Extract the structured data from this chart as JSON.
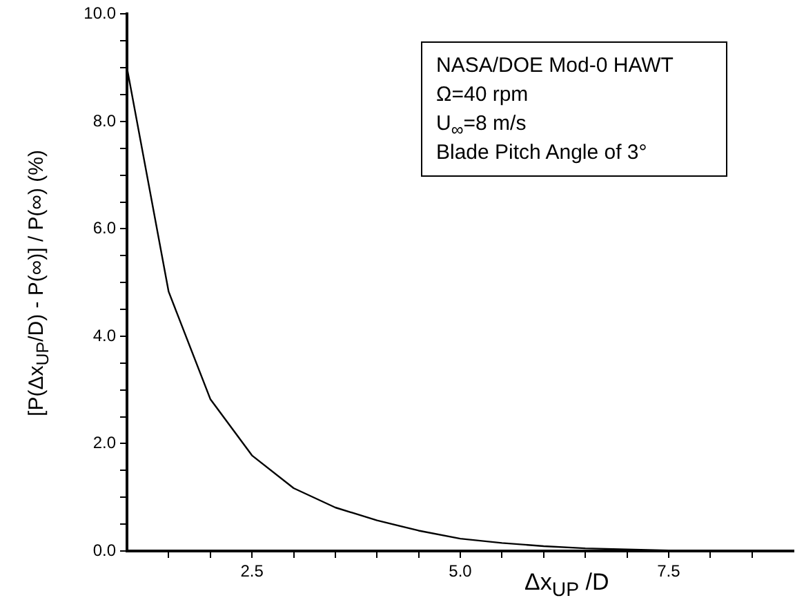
{
  "chart_data": {
    "type": "line",
    "xlabel": "Δx$_{UP}$ /D",
    "ylabel": "[P(Δx$_{UP}$/D) - P(∞)] / P(∞)   (%)",
    "x": [
      1,
      1.5,
      2,
      2.5,
      3,
      3.5,
      4,
      4.5,
      5,
      5.5,
      6,
      6.5,
      7,
      7.5,
      8,
      8.5,
      9
    ],
    "series": [
      {
        "color": "#000000",
        "values": [
          9.0,
          4.83,
          2.83,
          1.78,
          1.17,
          0.81,
          0.57,
          0.38,
          0.23,
          0.15,
          0.09,
          0.05,
          0.03,
          0.01,
          0,
          0,
          0
        ]
      }
    ],
    "xlim": [
      1,
      9
    ],
    "xticks": [
      {
        "value": 1.5,
        "label": null
      },
      {
        "value": 2,
        "label": null
      },
      {
        "value": 2.5,
        "label": "2.5"
      },
      {
        "value": 3,
        "label": null
      },
      {
        "value": 3.5,
        "label": null
      },
      {
        "value": 4,
        "label": null
      },
      {
        "value": 4.5,
        "label": null
      },
      {
        "value": 5,
        "label": "5.0"
      },
      {
        "value": 5.5,
        "label": null
      },
      {
        "value": 6,
        "label": null
      },
      {
        "value": 6.5,
        "label": null
      },
      {
        "value": 7,
        "label": null
      },
      {
        "value": 7.5,
        "label": "7.5"
      },
      {
        "value": 8,
        "label": null
      },
      {
        "value": 8.5,
        "label": null
      }
    ],
    "ylim": [
      0,
      10
    ],
    "yticks": [
      {
        "value": 0,
        "label": "0.0"
      },
      {
        "value": 0.5,
        "label": null
      },
      {
        "value": 1,
        "label": null
      },
      {
        "value": 1.5,
        "label": null
      },
      {
        "value": 2,
        "label": "2.0"
      },
      {
        "value": 2.5,
        "label": null
      },
      {
        "value": 3,
        "label": null
      },
      {
        "value": 3.5,
        "label": null
      },
      {
        "value": 4,
        "label": "4.0"
      },
      {
        "value": 4.5,
        "label": null
      },
      {
        "value": 5,
        "label": null
      },
      {
        "value": 5.5,
        "label": null
      },
      {
        "value": 6,
        "label": "6.0"
      },
      {
        "value": 6.5,
        "label": null
      },
      {
        "value": 7,
        "label": null
      },
      {
        "value": 7.5,
        "label": null
      },
      {
        "value": 8,
        "label": "8.0"
      },
      {
        "value": 8.5,
        "label": null
      },
      {
        "value": 9,
        "label": null
      },
      {
        "value": 9.5,
        "label": null
      },
      {
        "value": 10,
        "label": "10.0"
      }
    ],
    "grid": false,
    "legend": false,
    "annotations": [
      "NASA/DOE Mod-0 HAWT",
      "Ω=40 rpm",
      "U$_{∞}$=8 m/s",
      "Blade Pitch Angle of 3°"
    ]
  }
}
